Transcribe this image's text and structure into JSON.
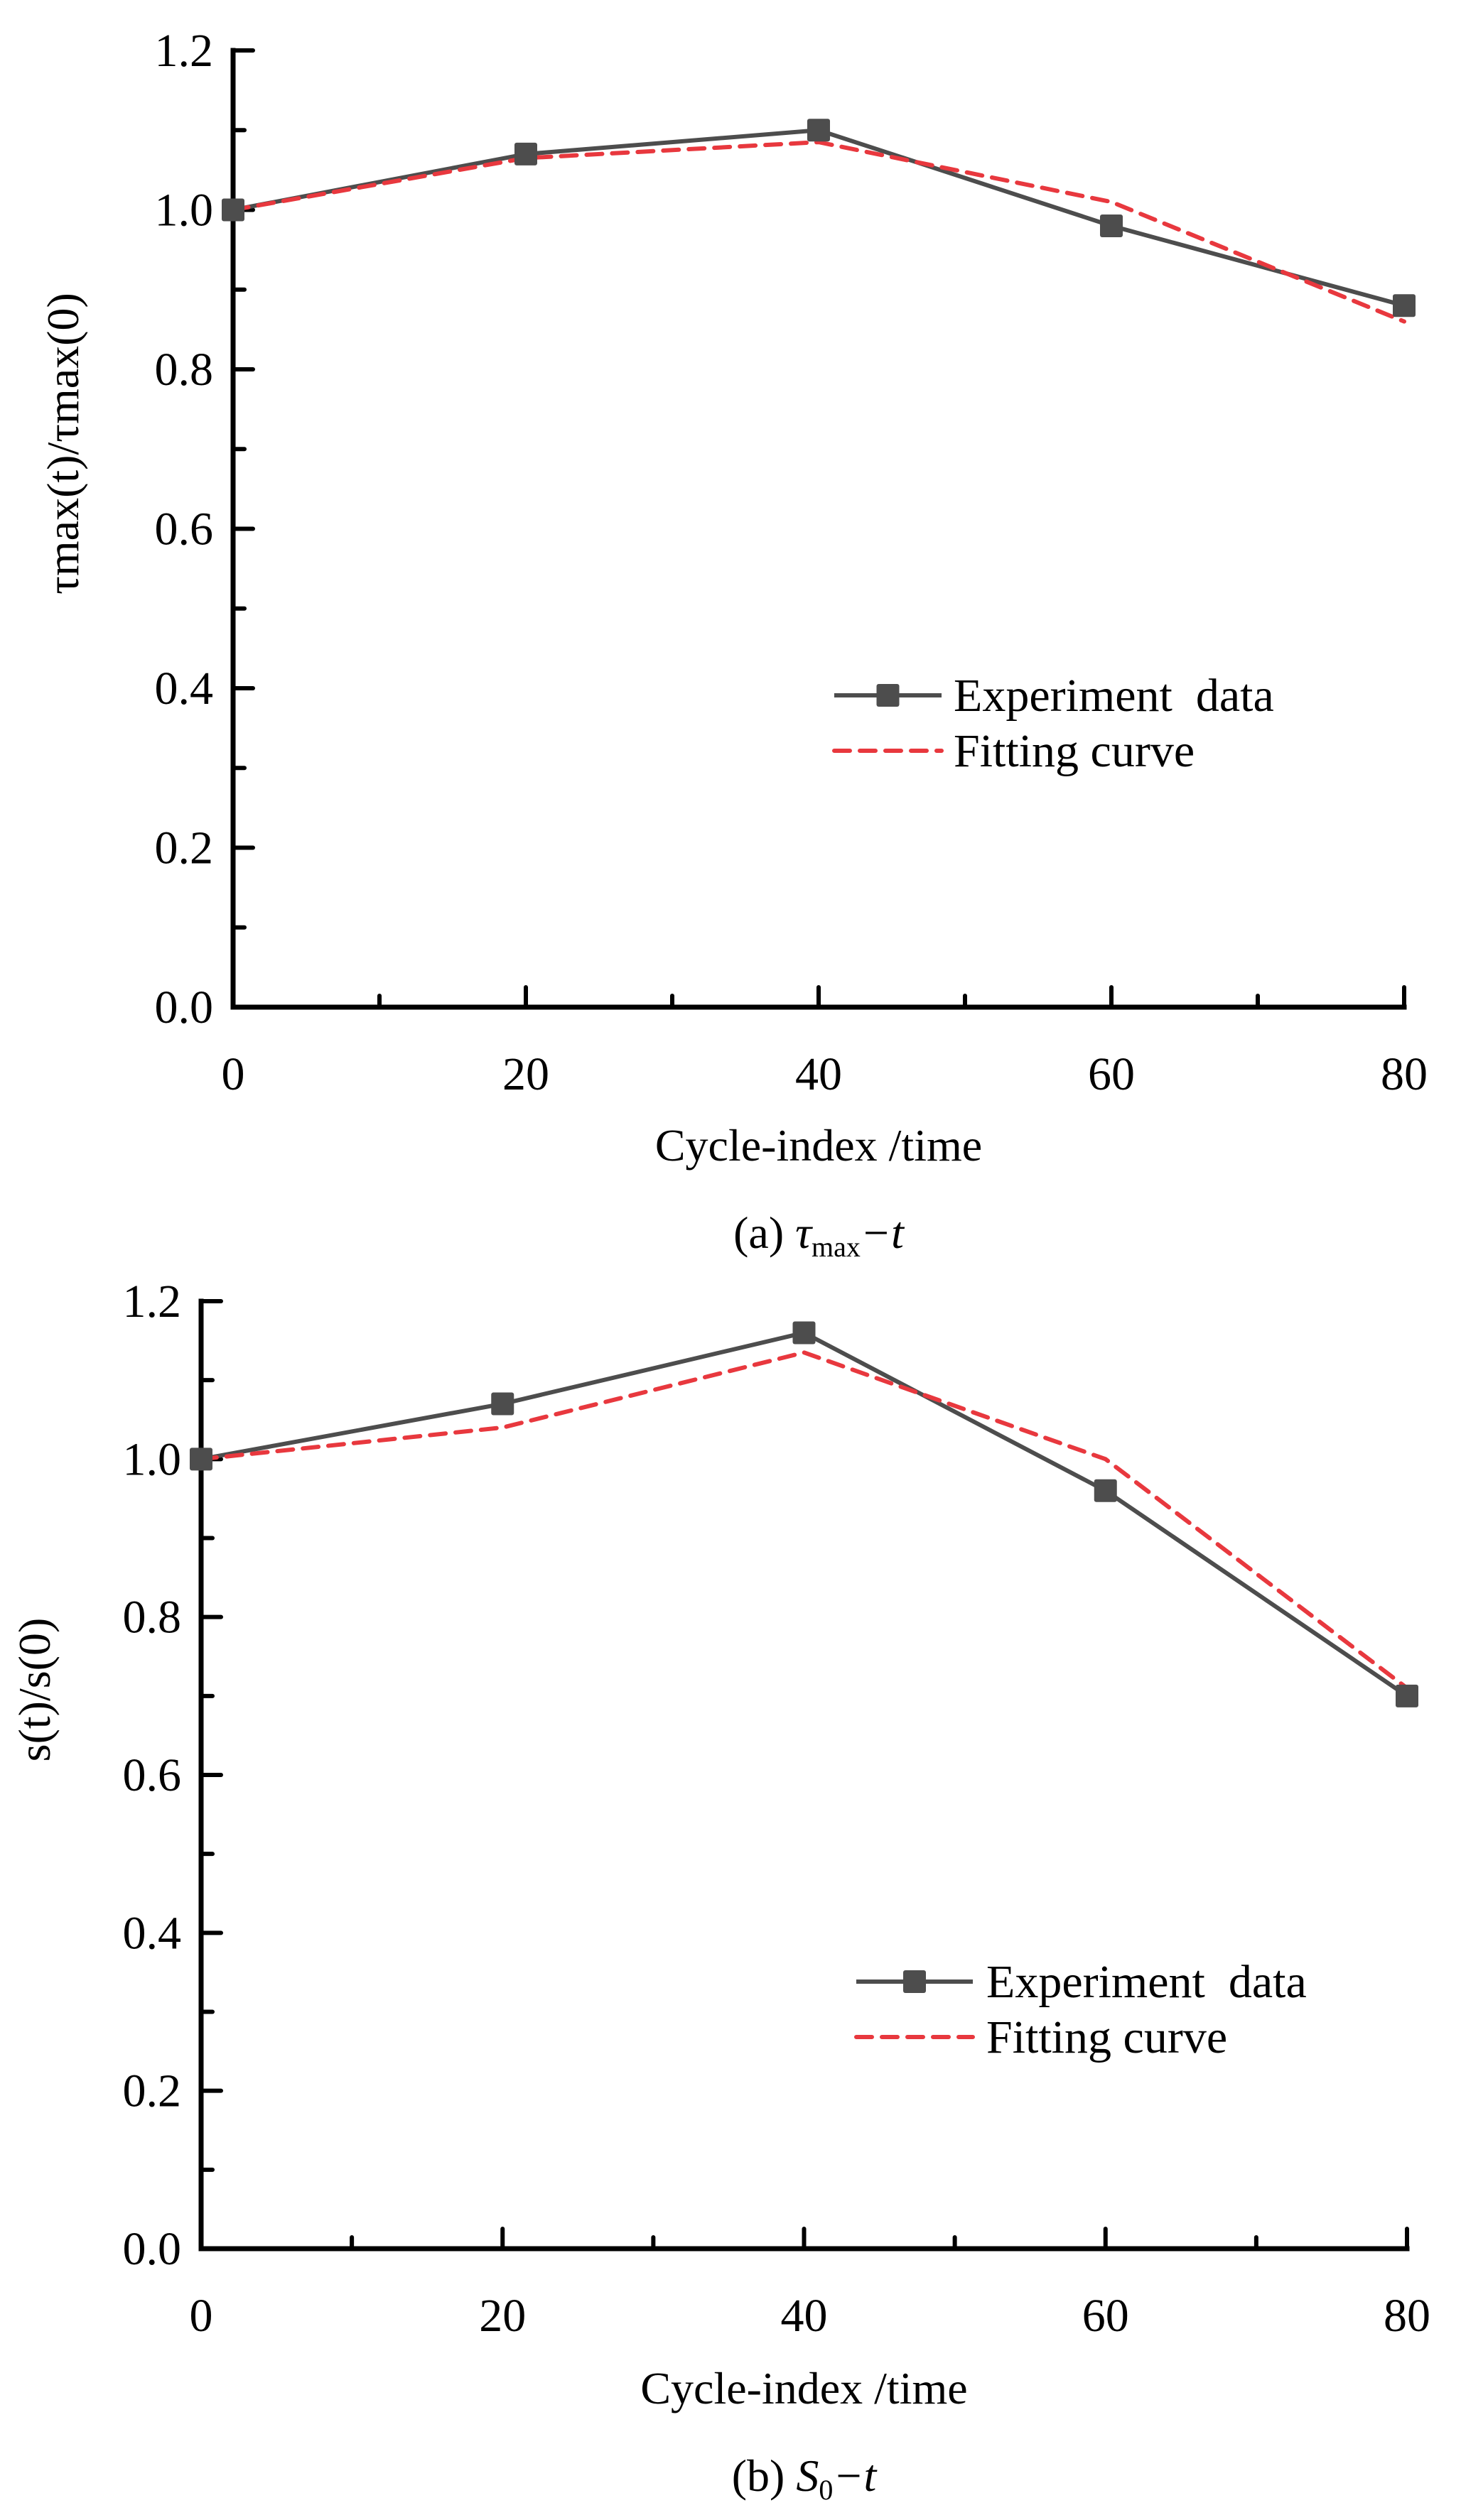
{
  "chart_data": [
    {
      "type": "line",
      "panel": "a",
      "caption": {
        "prefix": "(a) ",
        "symbol": "τ",
        "subscript": "max",
        "suffix": "−t"
      },
      "xlabel": "Cycle-index /time",
      "ylabel": "τmax(t)/τmax(0)",
      "xlim": [
        0,
        80
      ],
      "ylim": [
        0.0,
        1.2
      ],
      "x_ticks": [
        0,
        20,
        40,
        60,
        80
      ],
      "x_tick_labels": [
        "0",
        "20",
        "40",
        "60",
        "80"
      ],
      "y_ticks": [
        0.0,
        0.2,
        0.4,
        0.6,
        0.8,
        1.0,
        1.2
      ],
      "y_tick_labels": [
        "0.0",
        "0.2",
        "0.4",
        "0.6",
        "0.8",
        "1.0",
        "1.2"
      ],
      "grid": false,
      "legend_position": "middle-right",
      "x": [
        0,
        20,
        40,
        60,
        80
      ],
      "series": [
        {
          "name": "Experiment  data",
          "style": "solid-square-marker",
          "color": "#4d4d4d",
          "values": [
            1.0,
            1.07,
            1.1,
            0.98,
            0.88
          ]
        },
        {
          "name": "Fitting curve",
          "style": "dashed",
          "color": "#e8383e",
          "values": [
            1.0,
            1.065,
            1.085,
            1.01,
            0.86
          ]
        }
      ]
    },
    {
      "type": "line",
      "panel": "b",
      "caption": {
        "prefix": "(b) ",
        "symbol": "S",
        "subscript": "0",
        "suffix": "−t"
      },
      "xlabel": "Cycle-index /time",
      "ylabel": "s(t)/s(0)",
      "xlim": [
        0,
        80
      ],
      "ylim": [
        0.0,
        1.2
      ],
      "x_ticks": [
        0,
        20,
        40,
        60,
        80
      ],
      "x_tick_labels": [
        "0",
        "20",
        "40",
        "60",
        "80"
      ],
      "y_ticks": [
        0.0,
        0.2,
        0.4,
        0.6,
        0.8,
        1.0,
        1.2
      ],
      "y_tick_labels": [
        "0.0",
        "0.2",
        "0.4",
        "0.6",
        "0.8",
        "1.0",
        "1.2"
      ],
      "grid": false,
      "legend_position": "middle-right",
      "x": [
        0,
        20,
        40,
        60,
        80
      ],
      "series": [
        {
          "name": "Experiment  data",
          "style": "solid-square-marker",
          "color": "#4d4d4d",
          "values": [
            1.0,
            1.07,
            1.16,
            0.96,
            0.7
          ]
        },
        {
          "name": "Fitting curve",
          "style": "dashed",
          "color": "#e8383e",
          "values": [
            1.0,
            1.04,
            1.135,
            1.0,
            0.71
          ]
        }
      ]
    }
  ]
}
